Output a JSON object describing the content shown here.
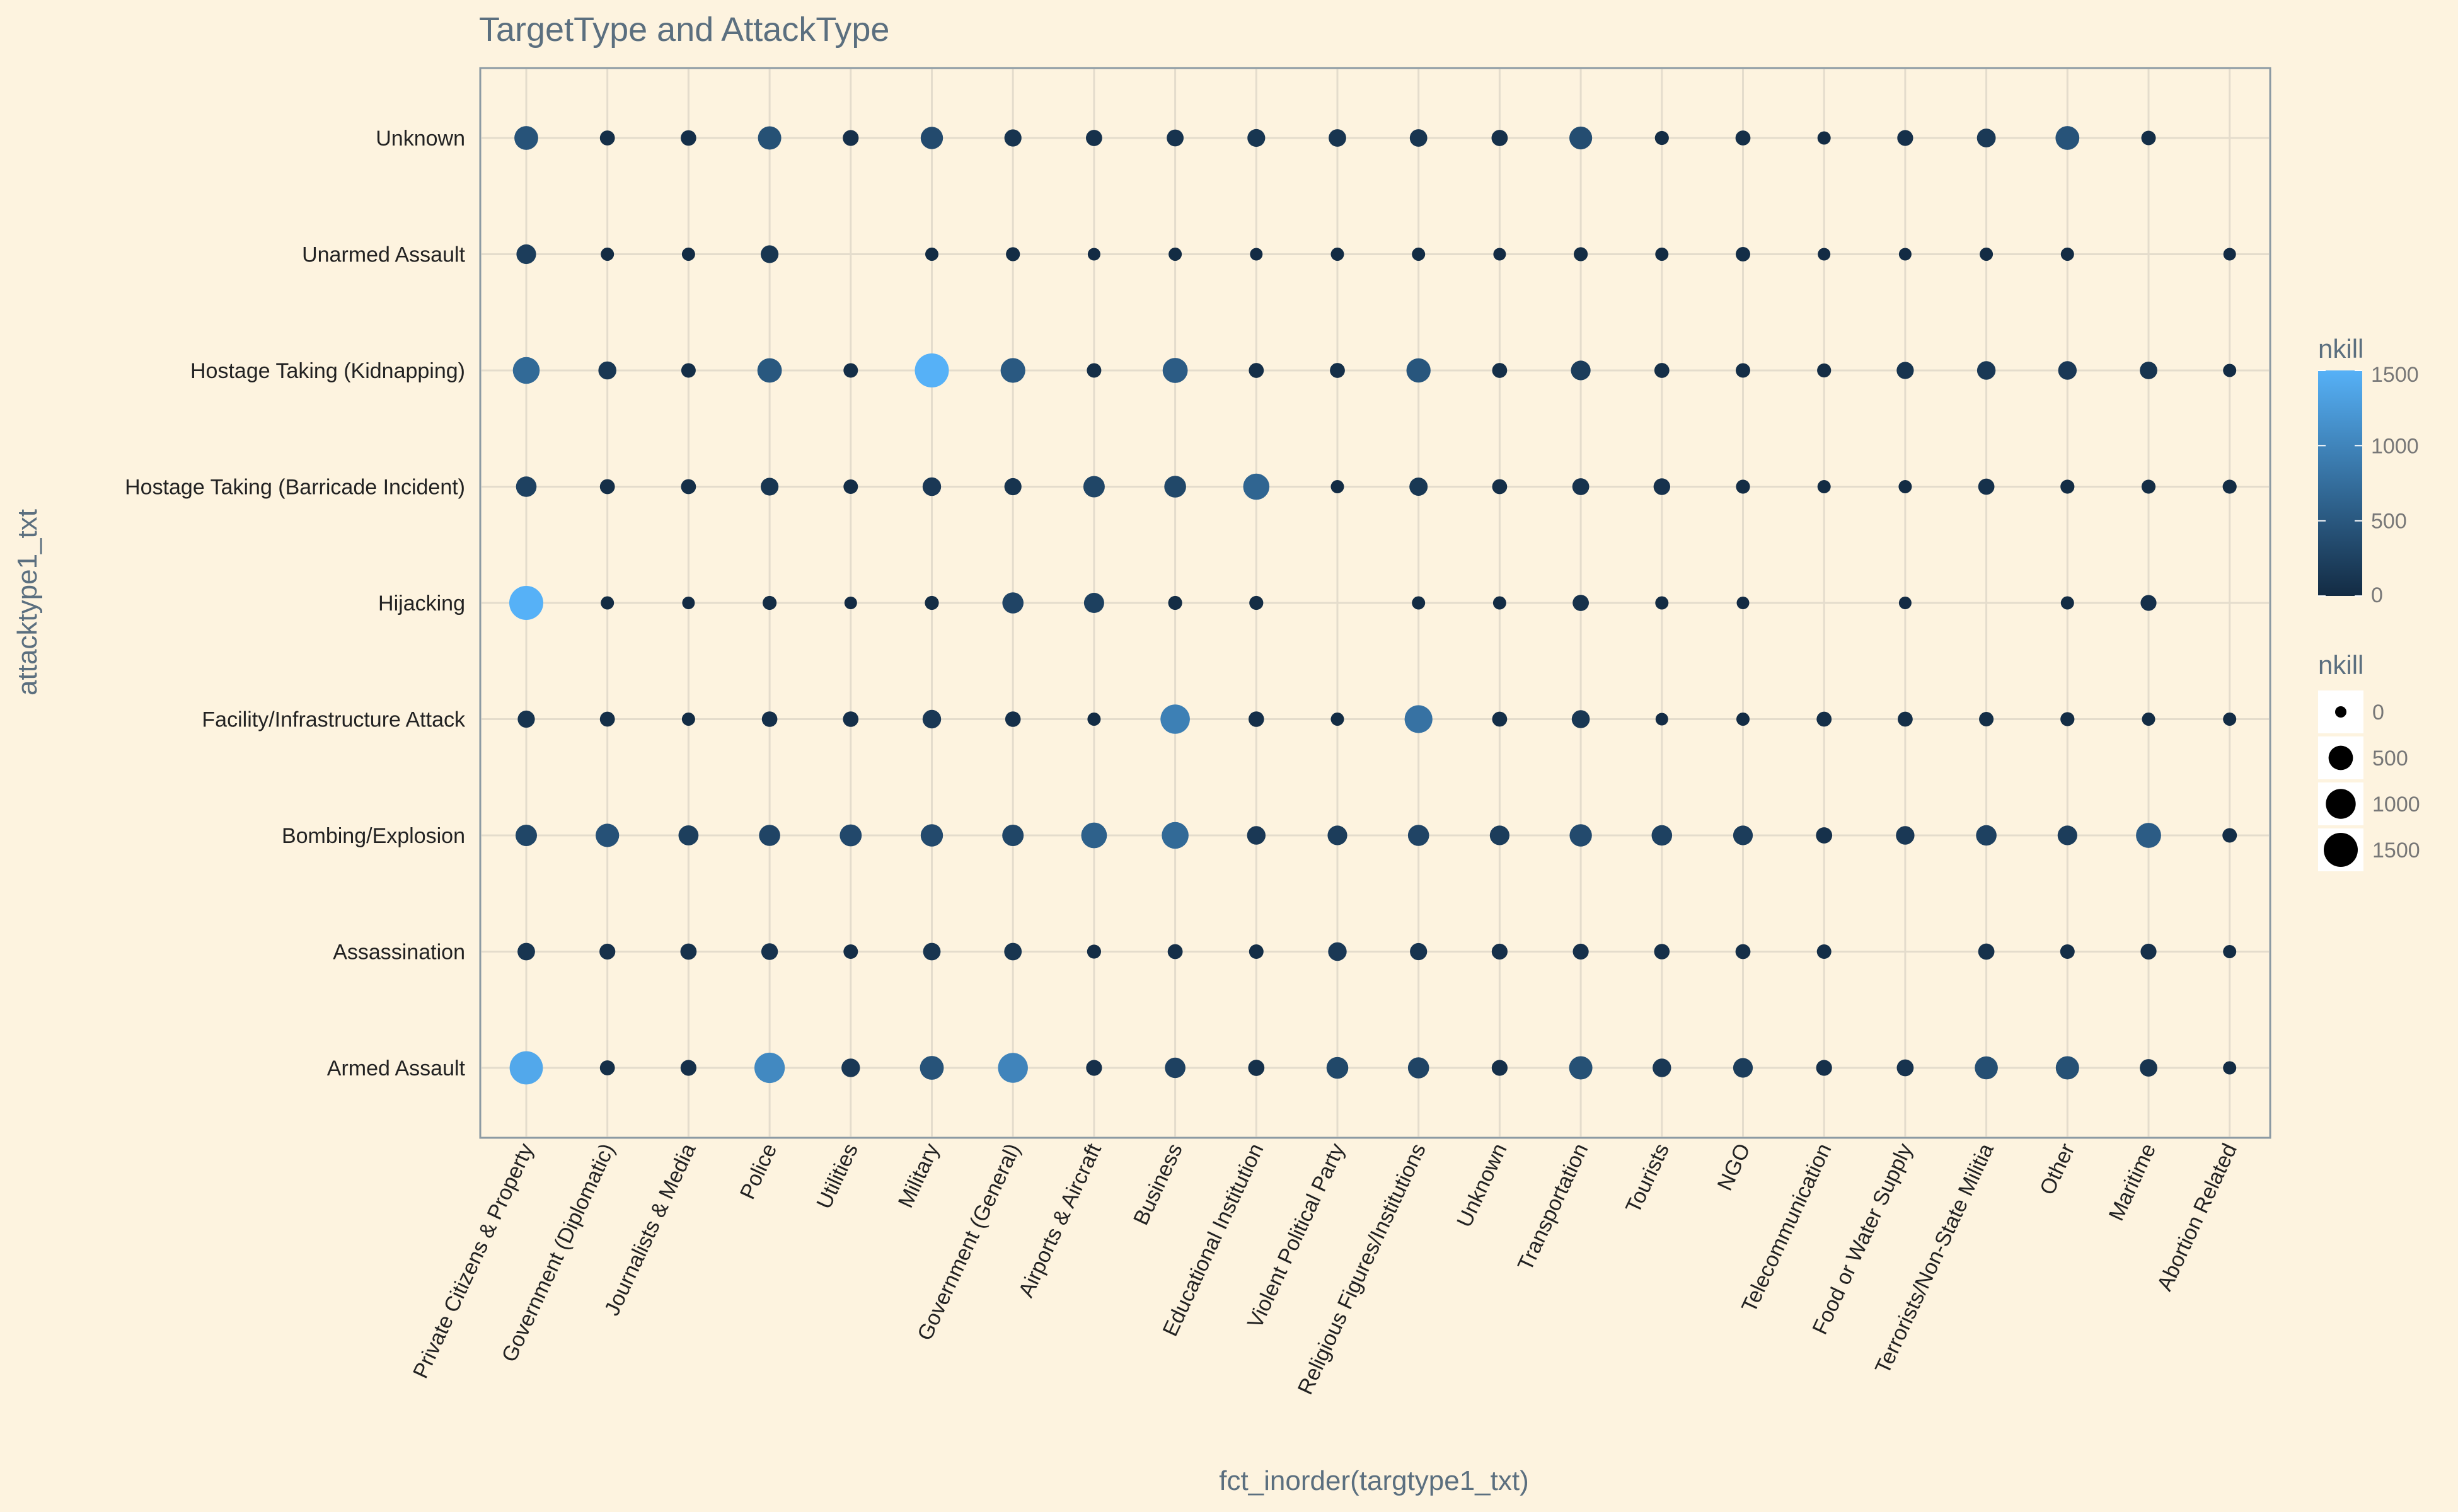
{
  "chart_data": {
    "type": "scatter",
    "title": "TargetType and AttackType",
    "xlabel": "fct_inorder(targtype1_txt)",
    "ylabel": "attacktype1_txt",
    "x_categories": [
      "Private Citizens & Property",
      "Government (Diplomatic)",
      "Journalists & Media",
      "Police",
      "Utilities",
      "Military",
      "Government (General)",
      "Airports & Aircraft",
      "Business",
      "Educational Institution",
      "Violent Political Party",
      "Religious Figures/Institutions",
      "Unknown",
      "Transportation",
      "Tourists",
      "NGO",
      "Telecommunication",
      "Food or Water Supply",
      "Terrorists/Non-State Militia",
      "Other",
      "Maritime",
      "Abortion Related"
    ],
    "y_categories": [
      "Armed Assault",
      "Assassination",
      "Bombing/Explosion",
      "Facility/Infrastructure Attack",
      "Hijacking",
      "Hostage Taking (Barricade Incident)",
      "Hostage Taking (Kidnapping)",
      "Unarmed Assault",
      "Unknown"
    ],
    "series_note": "nkill encoded by both point size and point colour; each row = one attack type, values in x_categories order, null = no point",
    "nkill": {
      "Unknown": [
        450,
        40,
        50,
        420,
        60,
        350,
        100,
        70,
        90,
        120,
        110,
        110,
        70,
        380,
        20,
        40,
        10,
        60,
        160,
        450,
        30,
        null
      ],
      "Unarmed Assault": [
        200,
        10,
        10,
        120,
        null,
        10,
        20,
        5,
        10,
        5,
        10,
        10,
        5,
        20,
        10,
        30,
        5,
        5,
        10,
        10,
        null,
        5
      ],
      "Hostage Taking (Kidnapping)": [
        700,
        130,
        30,
        500,
        30,
        1500,
        520,
        30,
        550,
        40,
        40,
        480,
        40,
        200,
        40,
        30,
        20,
        100,
        150,
        150,
        110,
        10
      ],
      "Hostage Taking (Barricade Incident)": [
        250,
        40,
        40,
        120,
        30,
        150,
        100,
        300,
        320,
        650,
        10,
        140,
        40,
        90,
        80,
        20,
        10,
        10,
        70,
        20,
        20,
        20
      ],
      "Hijacking": [
        1500,
        10,
        5,
        20,
        5,
        20,
        280,
        230,
        20,
        20,
        null,
        10,
        10,
        70,
        10,
        5,
        null,
        5,
        null,
        10,
        60,
        null
      ],
      "Facility/Infrastructure Attack": [
        100,
        40,
        10,
        50,
        50,
        150,
        50,
        10,
        950,
        50,
        10,
        800,
        40,
        130,
        5,
        10,
        40,
        40,
        30,
        20,
        10,
        10
      ],
      "Bombing/Explosion": [
        300,
        430,
        220,
        280,
        330,
        350,
        300,
        600,
        700,
        150,
        200,
        280,
        200,
        350,
        250,
        200,
        70,
        150,
        250,
        200,
        550,
        30
      ],
      "Assassination": [
        110,
        60,
        70,
        80,
        30,
        110,
        110,
        20,
        40,
        30,
        150,
        100,
        60,
        60,
        50,
        40,
        30,
        null,
        70,
        30,
        60,
        10
      ],
      "Armed Assault": [
        1400,
        40,
        60,
        1050,
        150,
        450,
        1000,
        60,
        250,
        70,
        320,
        280,
        60,
        420,
        150,
        200,
        60,
        90,
        400,
        420,
        110,
        10
      ]
    },
    "size_legend": {
      "title": "nkill",
      "breaks": [
        0,
        500,
        1000,
        1500
      ]
    },
    "color_legend": {
      "title": "nkill",
      "breaks": [
        0,
        500,
        1000,
        1500
      ],
      "low": "#132b43",
      "high": "#56b1f7"
    },
    "xlim_categories": 22,
    "ylim_categories": 9,
    "grid": true,
    "legend_position": "right",
    "colors": {
      "background": "#fdf3df",
      "grid": "#e4dccc",
      "panel_border": "#8c9aa3",
      "title": "#5b6f7f"
    }
  }
}
